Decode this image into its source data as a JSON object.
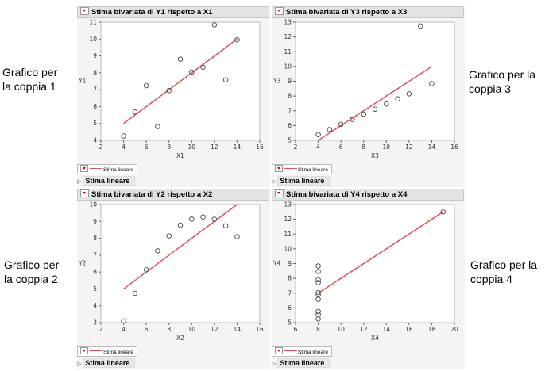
{
  "side_labels": [
    {
      "line1": "Grafico per",
      "line2": "la coppia 1"
    },
    {
      "line1": "Grafico per la",
      "line2": "coppia 3"
    },
    {
      "line1": "Grafico per",
      "line2": "la coppia 2"
    },
    {
      "line1": "Grafico per la",
      "line2": "coppia 4"
    }
  ],
  "line_color": "#e05060",
  "chart_data": [
    {
      "type": "scatter",
      "title": "Stima bivariata di Y1 rispetto a X1",
      "xlabel": "X1",
      "ylabel": "Y1",
      "xlim": [
        2,
        16
      ],
      "ylim": [
        4,
        11
      ],
      "xticks": [
        2,
        4,
        6,
        8,
        10,
        12,
        14,
        16
      ],
      "yticks": [
        4,
        5,
        6,
        7,
        8,
        9,
        10,
        11
      ],
      "x": [
        10,
        8,
        13,
        9,
        11,
        14,
        6,
        4,
        12,
        7,
        5
      ],
      "y": [
        8.04,
        6.95,
        7.58,
        8.81,
        8.33,
        9.96,
        7.24,
        4.26,
        10.84,
        4.82,
        5.68
      ],
      "fit": {
        "intercept": 3.0,
        "slope": 0.5,
        "x_range": [
          4,
          14
        ]
      },
      "legend": "Stima lineare",
      "section": "Stima lineare"
    },
    {
      "type": "scatter",
      "title": "Stima bivariata di Y3 rispetto a X3",
      "xlabel": "X3",
      "ylabel": "Y3",
      "xlim": [
        2,
        16
      ],
      "ylim": [
        5,
        13
      ],
      "xticks": [
        2,
        4,
        6,
        8,
        10,
        12,
        14,
        16
      ],
      "yticks": [
        5,
        6,
        7,
        8,
        9,
        10,
        11,
        12,
        13
      ],
      "x": [
        10,
        8,
        13,
        9,
        11,
        14,
        6,
        4,
        12,
        7,
        5
      ],
      "y": [
        7.46,
        6.77,
        12.74,
        7.11,
        7.81,
        8.84,
        6.08,
        5.39,
        8.15,
        6.42,
        5.73
      ],
      "fit": {
        "intercept": 3.0,
        "slope": 0.5,
        "x_range": [
          4,
          14
        ]
      },
      "legend": "Stima lineare",
      "section": "Stima lineare"
    },
    {
      "type": "scatter",
      "title": "Stima bivariata di Y2 rispetto a X2",
      "xlabel": "X2",
      "ylabel": "Y2",
      "xlim": [
        2,
        16
      ],
      "ylim": [
        3,
        10
      ],
      "xticks": [
        2,
        4,
        6,
        8,
        10,
        12,
        14,
        16
      ],
      "yticks": [
        3,
        4,
        5,
        6,
        7,
        8,
        9,
        10
      ],
      "x": [
        10,
        8,
        13,
        9,
        11,
        14,
        6,
        4,
        12,
        7,
        5
      ],
      "y": [
        9.14,
        8.14,
        8.74,
        8.77,
        9.26,
        8.1,
        6.13,
        3.1,
        9.13,
        7.26,
        4.74
      ],
      "fit": {
        "intercept": 3.0,
        "slope": 0.5,
        "x_range": [
          4,
          14
        ]
      },
      "legend": "Stima lineare",
      "section": "Stima lineare"
    },
    {
      "type": "scatter",
      "title": "Stima bivariata di Y4 rispetto a X4",
      "xlabel": "X4",
      "ylabel": "Y4",
      "xlim": [
        6,
        20
      ],
      "ylim": [
        5,
        13
      ],
      "xticks": [
        6,
        8,
        10,
        12,
        14,
        16,
        18,
        20
      ],
      "yticks": [
        5,
        6,
        7,
        8,
        9,
        10,
        11,
        12,
        13
      ],
      "x": [
        8,
        8,
        8,
        8,
        8,
        8,
        8,
        19,
        8,
        8,
        8
      ],
      "y": [
        6.58,
        5.76,
        7.71,
        8.84,
        8.47,
        7.04,
        5.25,
        12.5,
        5.56,
        7.91,
        6.89
      ],
      "fit": {
        "intercept": 3.0,
        "slope": 0.5,
        "x_range": [
          8,
          19
        ]
      },
      "legend": "Stima lineare",
      "section": "Stima lineare"
    }
  ]
}
